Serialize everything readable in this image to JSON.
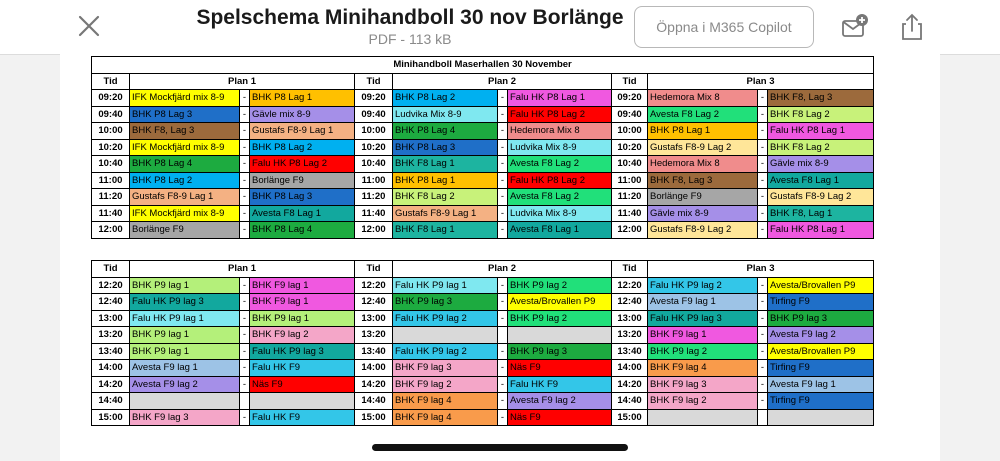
{
  "header": {
    "title": "Spelschema Minihandboll 30 nov Borlänge",
    "subtitle": "PDF - 113 kB",
    "copilot_label": "Öppna i M365 Copilot",
    "icons": [
      "close-icon",
      "mail-add-icon",
      "share-icon"
    ]
  },
  "document": {
    "title": "Minihandboll Maserhallen 30 November",
    "col_time": "Tid",
    "plans": [
      "Plan 1",
      "Plan 2",
      "Plan 3"
    ],
    "dash": "-",
    "tables": [
      {
        "rows": [
          {
            "time": "09:20",
            "cells": [
              [
                "IFK Mockfjärd mix 8-9",
                "#ffff00",
                "BHK P8 Lag 1",
                "#ffc000"
              ],
              [
                "BHK P8 Lag 2",
                "#00b0f0",
                "Falu HK P8 Lag 1",
                "#f058e0"
              ],
              [
                "Hedemora Mix 8",
                "#f08c8c",
                "BHK F8, Lag 3",
                "#9c6a3c"
              ]
            ]
          },
          {
            "time": "09:40",
            "cells": [
              [
                "BHK P8 Lag 3",
                "#1f6fc8",
                "Gävle mix 8-9",
                "#a58fe8"
              ],
              [
                "Ludvika Mix 8-9",
                "#7fe8f0",
                "Falu HK P8 Lag 2",
                "#ff0000"
              ],
              [
                "Avesta F8 Lag 2",
                "#21e07a",
                "BHK F8 Lag 2",
                "#c8f27a"
              ]
            ]
          },
          {
            "time": "10:00",
            "cells": [
              [
                "BHK F8, Lag 3",
                "#9c6a3c",
                "Gustafs F8-9 Lag 1",
                "#f4b183"
              ],
              [
                "BHK P8 Lag 4",
                "#1dab40",
                "Hedemora Mix 8",
                "#f08c8c"
              ],
              [
                "BHK P8 Lag 1",
                "#ffc000",
                "Falu HK P8 Lag 1",
                "#f058e0"
              ]
            ]
          },
          {
            "time": "10:20",
            "cells": [
              [
                "IFK Mockfjärd mix 8-9",
                "#ffff00",
                "BHK P8 Lag 2",
                "#00b0f0"
              ],
              [
                "BHK P8 Lag 3",
                "#1f6fc8",
                "Ludvika Mix 8-9",
                "#7fe8f0"
              ],
              [
                "Gustafs F8-9 Lag 2",
                "#ffe699",
                "BHK F8 Lag 2",
                "#c8f27a"
              ]
            ]
          },
          {
            "time": "10:40",
            "cells": [
              [
                "BHK P8 Lag 4",
                "#1dab40",
                "Falu HK P8 Lag 2",
                "#ff0000"
              ],
              [
                "BHK F8 Lag 1",
                "#1db4a0",
                "Avesta F8 Lag 2",
                "#21e07a"
              ],
              [
                "Hedemora Mix 8",
                "#f08c8c",
                "Gävle mix 8-9",
                "#a58fe8"
              ]
            ]
          },
          {
            "time": "11:00",
            "cells": [
              [
                "BHK P8 Lag 2",
                "#00b0f0",
                "Borlänge F9",
                "#a6a6a6"
              ],
              [
                "BHK P8 Lag 1",
                "#ffc000",
                "Falu HK P8 Lag 2",
                "#ff0000"
              ],
              [
                "BHK F8, Lag 3",
                "#9c6a3c",
                "Avesta F8 Lag 1",
                "#12a89e"
              ]
            ]
          },
          {
            "time": "11:20",
            "cells": [
              [
                "Gustafs F8-9 Lag 1",
                "#f4b183",
                "BHK P8 Lag 3",
                "#1f6fc8"
              ],
              [
                "BHK F8 Lag 2",
                "#c8f27a",
                "Avesta F8 Lag 2",
                "#21e07a"
              ],
              [
                "Borlänge F9",
                "#a6a6a6",
                "Gustafs F8-9 Lag 2",
                "#ffe699"
              ]
            ]
          },
          {
            "time": "11:40",
            "cells": [
              [
                "IFK Mockfjärd mix 8-9",
                "#ffff00",
                "Avesta F8 Lag 1",
                "#12a89e"
              ],
              [
                "Gustafs F8-9 Lag 1",
                "#f4b183",
                "Ludvika Mix 8-9",
                "#7fe8f0"
              ],
              [
                "Gävle mix 8-9",
                "#a58fe8",
                "BHK F8, Lag 1",
                "#1db4a0"
              ]
            ]
          },
          {
            "time": "12:00",
            "cells": [
              [
                "Borlänge F9",
                "#a6a6a6",
                "BHK P8 Lag 4",
                "#1dab40"
              ],
              [
                "BHK F8 Lag 1",
                "#1db4a0",
                "Avesta F8 Lag 1",
                "#12a89e"
              ],
              [
                "Gustafs F8-9 Lag 2",
                "#ffe699",
                "Falu HK P8 Lag 1",
                "#f058e0"
              ]
            ]
          }
        ]
      },
      {
        "rows": [
          {
            "time": "12:20",
            "cells": [
              [
                "BHK P9 lag 1",
                "#b4f07a",
                "BHK F9 lag 1",
                "#f058e0"
              ],
              [
                "Falu HK P9 lag 1",
                "#7fe8f0",
                "BHK P9 lag 2",
                "#21e07a"
              ],
              [
                "Falu HK P9 lag 2",
                "#33c6e8",
                "Avesta/Brovallen P9",
                "#ffff00"
              ]
            ]
          },
          {
            "time": "12:40",
            "cells": [
              [
                "Falu HK P9 lag 3",
                "#12a89e",
                "BHK F9 lag 1",
                "#f058e0"
              ],
              [
                "BHK P9 lag 3",
                "#1dab40",
                "Avesta/Brovallen P9",
                "#ffff00"
              ],
              [
                "Avesta F9 lag 1",
                "#9dc3e6",
                "Tirfing F9",
                "#1f6fc8"
              ]
            ]
          },
          {
            "time": "13:00",
            "cells": [
              [
                "Falu HK P9 lag 1",
                "#7fe8f0",
                "BHK P9 lag 1",
                "#b4f07a"
              ],
              [
                "Falu HK P9 lag 2",
                "#33c6e8",
                "BHK P9 lag 2",
                "#21e07a"
              ],
              [
                "Falu HK P9 lag 3",
                "#12a89e",
                "BHK P9 lag 3",
                "#1dab40"
              ]
            ]
          },
          {
            "time": "13:20",
            "cells": [
              [
                "BHK P9 lag 1",
                "#b4f07a",
                "BHK F9 lag 2",
                "#f4a6c8"
              ],
              [
                "",
                "",
                "",
                "#d9d9d9"
              ],
              [
                "BHK F9 lag 1",
                "#f058e0",
                "Avesta F9 lag 2",
                "#a58fe8"
              ]
            ]
          },
          {
            "time": "13:40",
            "cells": [
              [
                "BHK P9 lag 1",
                "#b4f07a",
                "Falu HK P9 lag 3",
                "#12a89e"
              ],
              [
                "Falu HK P9 lag 2",
                "#33c6e8",
                "BHK P9 lag 3",
                "#1dab40"
              ],
              [
                "BHK P9 lag 2",
                "#21e07a",
                "Avesta/Brovallen P9",
                "#ffff00"
              ]
            ]
          },
          {
            "time": "14:00",
            "cells": [
              [
                "Avesta F9 lag 1",
                "#9dc3e6",
                "Falu HK F9",
                "#33c6e8"
              ],
              [
                "BHK F9 lag 3",
                "#f4a6c8",
                "Näs F9",
                "#ff0000"
              ],
              [
                "BHK F9 lag 4",
                "#f99b4b",
                "Tirfing F9",
                "#1f6fc8"
              ]
            ]
          },
          {
            "time": "14:20",
            "cells": [
              [
                "Avesta F9 lag 2",
                "#a58fe8",
                "Näs F9",
                "#ff0000"
              ],
              [
                "BHK F9 lag 2",
                "#f4a6c8",
                "Falu HK F9",
                "#33c6e8"
              ],
              [
                "BHK F9 lag 3",
                "#f4a6c8",
                "Avesta F9 lag 1",
                "#9dc3e6"
              ]
            ]
          },
          {
            "time": "14:40",
            "cells": [
              [
                "",
                "",
                "",
                "#d9d9d9"
              ],
              [
                "BHK F9 lag 4",
                "#f99b4b",
                "Avesta F9 lag 2",
                "#a58fe8"
              ],
              [
                "BHK F9 lag 2",
                "#f4a6c8",
                "Tirfing F9",
                "#1f6fc8"
              ]
            ]
          },
          {
            "time": "15:00",
            "cells": [
              [
                "BHK F9 lag 3",
                "#f4a6c8",
                "Falu HK F9",
                "#33c6e8"
              ],
              [
                "BHK F9 lag 4",
                "#f99b4b",
                "Näs F9",
                "#ff0000"
              ],
              [
                "",
                "",
                "",
                "#d9d9d9"
              ]
            ]
          }
        ]
      }
    ]
  }
}
